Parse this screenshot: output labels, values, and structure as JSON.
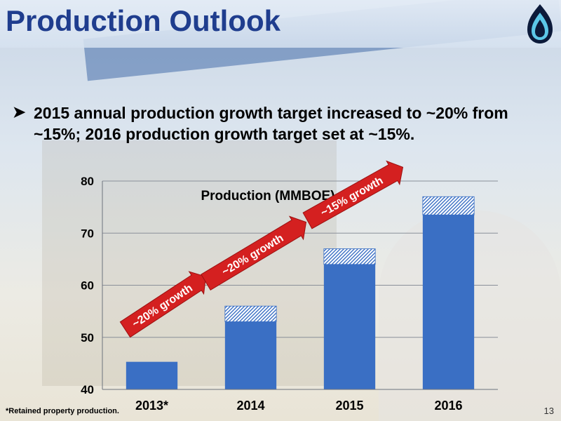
{
  "slide": {
    "title": "Production Outlook",
    "bullet": "2015 annual production growth target increased to ~20% from ~15%; 2016 production growth target set at ~15%.",
    "footnote": "*Retained property production.",
    "page_number": "13",
    "title_color": "#1f3d8e",
    "logo_icon": "gas-flame-icon"
  },
  "chart_data": {
    "type": "bar",
    "title": "Production (MMBOE)",
    "categories": [
      "2013*",
      "2014",
      "2015",
      "2016"
    ],
    "series": [
      {
        "values": [
          45.3,
          53,
          64,
          73.5
        ],
        "color": "#3a6fc4"
      },
      {
        "values": [
          0,
          3,
          3,
          3.5
        ],
        "color": "#9cb5dc",
        "pattern": "hatched"
      }
    ],
    "ylim": [
      40,
      80
    ],
    "yticks": [
      40,
      50,
      60,
      70,
      80
    ],
    "grid": true,
    "annotations": [
      {
        "text": "~20% growth",
        "between": [
          "2013*",
          "2014"
        ]
      },
      {
        "text": "~20% growth",
        "between": [
          "2014",
          "2015"
        ]
      },
      {
        "text": "~15% growth",
        "between": [
          "2015",
          "2016"
        ]
      }
    ],
    "annotation_color": "#d42020"
  }
}
